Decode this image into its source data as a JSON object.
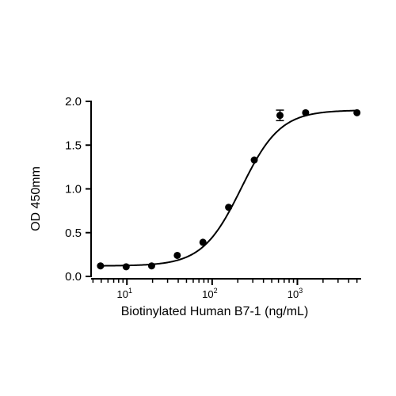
{
  "chart_data": {
    "type": "scatter",
    "xlabel": "Biotinylated Human B7-1 (ng/mL)",
    "ylabel": "OD 450mm",
    "xscale": "log",
    "xlim": [
      3.8,
      5600
    ],
    "ylim": [
      0,
      2.0
    ],
    "yticks": [
      "0.0",
      "0.5",
      "1.0",
      "1.5",
      "2.0"
    ],
    "xticks": [
      {
        "value": 10,
        "base": "10",
        "exp": "1"
      },
      {
        "value": 100,
        "base": "10",
        "exp": "2"
      },
      {
        "value": 1000,
        "base": "10",
        "exp": "3"
      }
    ],
    "grid": false,
    "legend": "none",
    "colors": {
      "marker": "#000000",
      "curve": "#000000",
      "axis": "#000000"
    },
    "series": [
      {
        "x": [
          4.9,
          9.8,
          19.5,
          39,
          78,
          156,
          312,
          625,
          1250,
          5000
        ],
        "y": [
          0.12,
          0.11,
          0.12,
          0.24,
          0.39,
          0.79,
          1.33,
          1.84,
          1.87,
          1.87
        ],
        "err": [
          0.01,
          0.01,
          0.01,
          0.01,
          0.01,
          0.01,
          0.02,
          0.06,
          0.02,
          0.02
        ]
      }
    ],
    "fit": {
      "model": "4PL",
      "bottom": 0.12,
      "top": 1.9,
      "ec50": 220,
      "hill": 1.9
    }
  }
}
